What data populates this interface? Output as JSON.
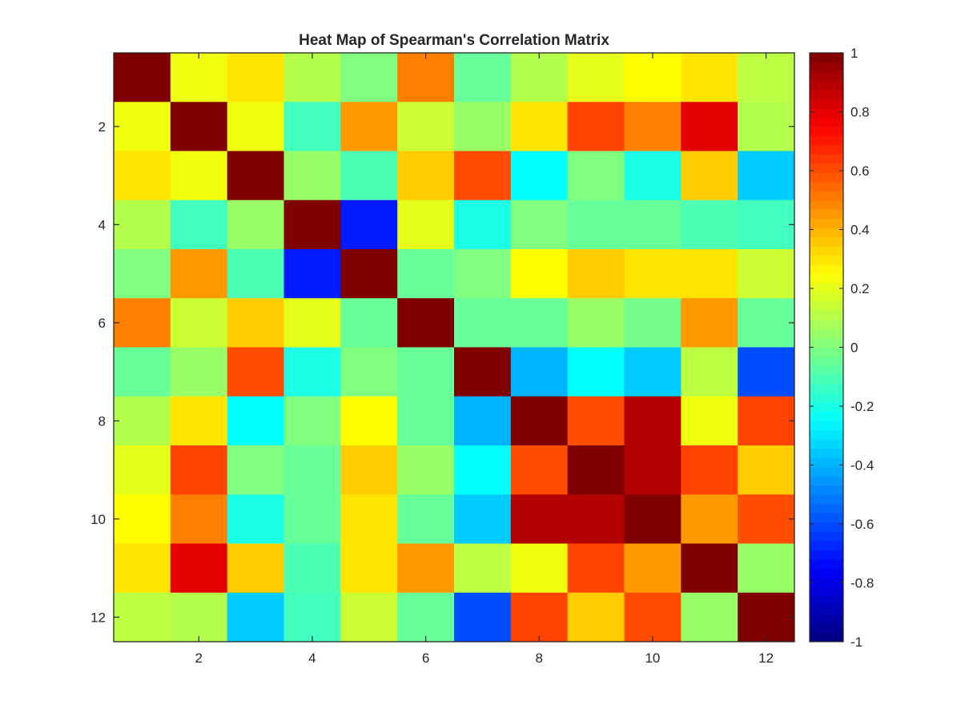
{
  "chart_data": {
    "type": "heatmap",
    "title": "Heat Map of Spearman's Correlation Matrix",
    "xlabel": "",
    "ylabel": "",
    "x_ticks": [
      2,
      4,
      6,
      8,
      10,
      12
    ],
    "y_ticks": [
      2,
      4,
      6,
      8,
      10,
      12
    ],
    "xlim": [
      0.5,
      12.5
    ],
    "ylim": [
      0.5,
      12.5
    ],
    "y_direction": "reversed",
    "colormap": "jet",
    "clim": [
      -1,
      1
    ],
    "colorbar": {
      "ticks": [
        -1,
        -0.8,
        -0.6,
        -0.4,
        -0.2,
        0,
        0.2,
        0.4,
        0.6,
        0.8,
        1
      ],
      "tick_labels": [
        "-1",
        "-0.8",
        "-0.6",
        "-0.4",
        "-0.2",
        "0",
        "0.2",
        "0.4",
        "0.6",
        "0.8",
        "1"
      ],
      "placement": "right"
    },
    "grid": false,
    "matrix": [
      [
        1.0,
        0.22,
        0.3,
        0.1,
        0.0,
        0.5,
        -0.05,
        0.1,
        0.2,
        0.25,
        0.3,
        0.12
      ],
      [
        0.22,
        1.0,
        0.22,
        -0.12,
        0.45,
        0.15,
        0.05,
        0.3,
        0.62,
        0.5,
        0.8,
        0.1
      ],
      [
        0.3,
        0.22,
        1.0,
        0.05,
        -0.1,
        0.35,
        0.6,
        -0.25,
        0.0,
        -0.2,
        0.35,
        -0.35
      ],
      [
        0.1,
        -0.12,
        0.05,
        1.0,
        -0.7,
        0.2,
        -0.2,
        0.0,
        -0.05,
        -0.05,
        -0.1,
        -0.12
      ],
      [
        0.0,
        0.45,
        -0.1,
        -0.7,
        1.0,
        -0.05,
        0.0,
        0.25,
        0.35,
        0.3,
        0.3,
        0.15
      ],
      [
        0.5,
        0.15,
        0.35,
        0.2,
        -0.05,
        1.0,
        -0.05,
        -0.05,
        0.05,
        -0.02,
        0.45,
        -0.05
      ],
      [
        -0.05,
        0.05,
        0.6,
        -0.2,
        0.0,
        -0.05,
        1.0,
        -0.4,
        -0.25,
        -0.35,
        0.12,
        -0.6
      ],
      [
        0.1,
        0.3,
        -0.25,
        0.0,
        0.25,
        -0.05,
        -0.4,
        1.0,
        0.6,
        0.9,
        0.22,
        0.62
      ],
      [
        0.2,
        0.62,
        0.0,
        -0.05,
        0.35,
        0.05,
        -0.25,
        0.6,
        1.0,
        0.9,
        0.62,
        0.35
      ],
      [
        0.25,
        0.5,
        -0.2,
        -0.05,
        0.3,
        -0.05,
        -0.35,
        0.9,
        0.9,
        1.0,
        0.45,
        0.6
      ],
      [
        0.3,
        0.8,
        0.35,
        -0.1,
        0.3,
        0.45,
        0.12,
        0.22,
        0.62,
        0.45,
        1.0,
        0.05
      ],
      [
        0.12,
        0.1,
        -0.35,
        -0.12,
        0.15,
        -0.05,
        -0.6,
        0.62,
        0.35,
        0.6,
        0.05,
        1.0
      ]
    ]
  }
}
